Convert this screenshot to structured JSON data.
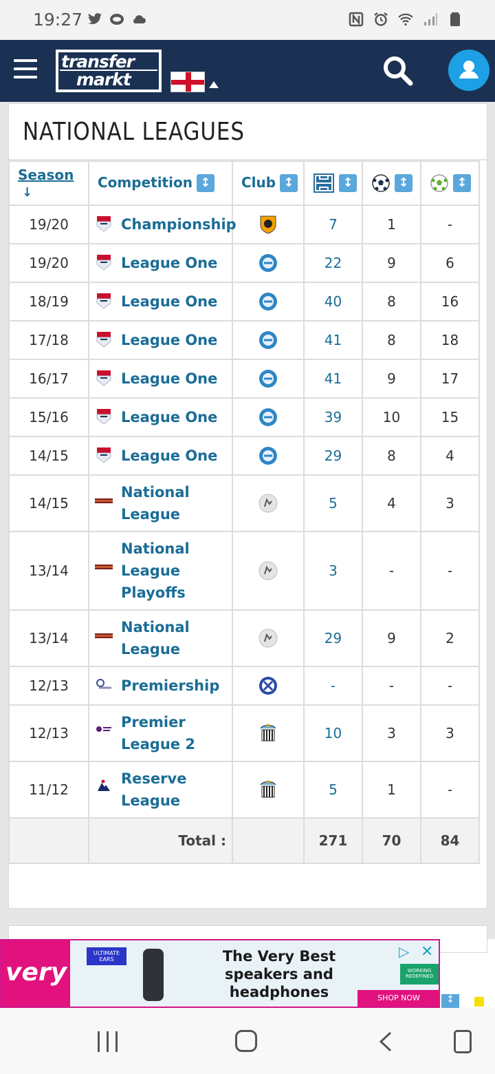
{
  "status_bar": {
    "time": "19:27",
    "left_icons": [
      "twitter-icon",
      "messages-icon",
      "cloud-icon"
    ],
    "right_icons": [
      "nfc-icon",
      "alarm-icon",
      "wifi-icon",
      "signal-icon",
      "battery-icon"
    ]
  },
  "header": {
    "logo_top": "transfer",
    "logo_bottom": "markt",
    "flag": "england-flag"
  },
  "section": {
    "title": "NATIONAL LEAGUES"
  },
  "table": {
    "headers": {
      "season": "Season",
      "competition": "Competition",
      "club": "Club"
    },
    "header_icons": [
      "appearances-icon",
      "goals-icon",
      "assists-icon"
    ],
    "rows": [
      {
        "season": "19/20",
        "competition": "Championship",
        "appearances": "7",
        "goals": "1",
        "assists": "-"
      },
      {
        "season": "19/20",
        "competition": "League One",
        "appearances": "22",
        "goals": "9",
        "assists": "6"
      },
      {
        "season": "18/19",
        "competition": "League One",
        "appearances": "40",
        "goals": "8",
        "assists": "16"
      },
      {
        "season": "17/18",
        "competition": "League One",
        "appearances": "41",
        "goals": "8",
        "assists": "18"
      },
      {
        "season": "16/17",
        "competition": "League One",
        "appearances": "41",
        "goals": "9",
        "assists": "17"
      },
      {
        "season": "15/16",
        "competition": "League One",
        "appearances": "39",
        "goals": "10",
        "assists": "15"
      },
      {
        "season": "14/15",
        "competition": "League One",
        "appearances": "29",
        "goals": "8",
        "assists": "4"
      },
      {
        "season": "14/15",
        "competition": "National League",
        "appearances": "5",
        "goals": "4",
        "assists": "3"
      },
      {
        "season": "13/14",
        "competition": "National League Playoffs",
        "appearances": "3",
        "goals": "-",
        "assists": "-"
      },
      {
        "season": "13/14",
        "competition": "National League",
        "appearances": "29",
        "goals": "9",
        "assists": "2"
      },
      {
        "season": "12/13",
        "competition": "Premiership",
        "appearances": "-",
        "goals": "-",
        "assists": "-"
      },
      {
        "season": "12/13",
        "competition": "Premier League 2",
        "appearances": "10",
        "goals": "3",
        "assists": "3"
      },
      {
        "season": "11/12",
        "competition": "Reserve League",
        "appearances": "5",
        "goals": "1",
        "assists": "-"
      }
    ],
    "total": {
      "label": "Total :",
      "appearances": "271",
      "goals": "70",
      "assists": "84"
    }
  },
  "ad": {
    "brand": "very",
    "badge": "ULTIMATE EARS",
    "text": "The Very Best speakers and headphones",
    "cta": "SHOP NOW",
    "side_badge": "WORKING REDEFINED"
  },
  "nav_bar": {
    "buttons": [
      "recent-apps",
      "home",
      "back",
      "rotate"
    ]
  }
}
